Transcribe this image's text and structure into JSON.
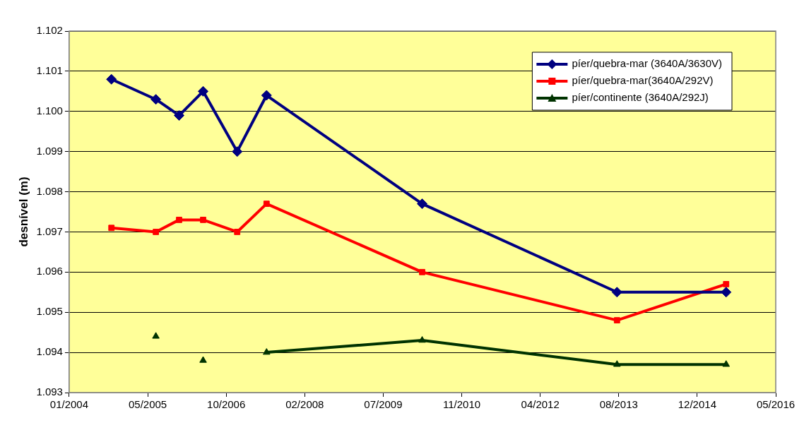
{
  "chart_data": {
    "type": "line",
    "ylabel": "desnível (m)",
    "x": [
      "2004-10-10",
      "2005-07-20",
      "2005-12-15",
      "2006-05-17",
      "2006-12-20",
      "2007-06-25",
      "2010-03-12",
      "2013-08-04",
      "2015-06-30"
    ],
    "series": [
      {
        "name": "píer/quebra-mar (3640A/3630V)",
        "color": "#000080",
        "marker": "diamond",
        "values": [
          1.1008,
          1.1003,
          1.0999,
          1.1005,
          1.099,
          1.1004,
          1.0977,
          1.0955,
          1.0955
        ]
      },
      {
        "name": "píer/quebra-mar(3640A/292V)",
        "color": "#ff0000",
        "marker": "square",
        "values": [
          1.0971,
          1.097,
          1.0973,
          1.0973,
          1.097,
          1.0977,
          1.096,
          1.0948,
          1.0957
        ]
      },
      {
        "name": "píer/continente (3640A/292J)",
        "color": "#003300",
        "marker": "triangle",
        "values": [
          null,
          1.0944,
          null,
          1.0938,
          null,
          1.094,
          1.0943,
          1.0937,
          1.0937
        ]
      }
    ],
    "xlim": [
      "2004-01-15",
      "2016-05-11"
    ],
    "xticks": [
      {
        "value": "2004-01-15",
        "label": "01/2004"
      },
      {
        "value": "2005-05-29",
        "label": "05/2005"
      },
      {
        "value": "2006-10-11",
        "label": "10/2006"
      },
      {
        "value": "2008-02-23",
        "label": "02/2008"
      },
      {
        "value": "2009-07-07",
        "label": "07/2009"
      },
      {
        "value": "2010-11-19",
        "label": "11/2010"
      },
      {
        "value": "2012-04-02",
        "label": "04/2012"
      },
      {
        "value": "2013-08-15",
        "label": "08/2013"
      },
      {
        "value": "2014-12-28",
        "label": "12/2014"
      },
      {
        "value": "2016-05-11",
        "label": "05/2016"
      }
    ],
    "ylim": [
      1.093,
      1.102
    ],
    "yticks": [
      {
        "value": 1.093,
        "label": "1.093"
      },
      {
        "value": 1.094,
        "label": "1.094"
      },
      {
        "value": 1.095,
        "label": "1.095"
      },
      {
        "value": 1.096,
        "label": "1.096"
      },
      {
        "value": 1.097,
        "label": "1.097"
      },
      {
        "value": 1.098,
        "label": "1.098"
      },
      {
        "value": 1.099,
        "label": "1.099"
      },
      {
        "value": 1.1,
        "label": "1.100"
      },
      {
        "value": 1.101,
        "label": "1.101"
      },
      {
        "value": 1.102,
        "label": "1.102"
      }
    ],
    "grid": "y",
    "legend": "top right"
  }
}
